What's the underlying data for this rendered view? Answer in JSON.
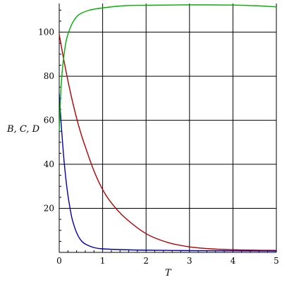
{
  "chart_data": {
    "type": "line",
    "title": "",
    "xlabel": "T",
    "ylabel": "B, C, D",
    "xlim": [
      0,
      5
    ],
    "ylim": [
      0,
      113
    ],
    "x_ticks": [
      0,
      1,
      2,
      3,
      4,
      5
    ],
    "y_ticks": [
      20,
      40,
      60,
      80,
      100
    ],
    "grid": true,
    "legend": "none",
    "series": [
      {
        "color": "#b00000",
        "x": [
          0,
          0.1,
          0.2,
          0.3,
          0.4,
          0.5,
          0.6,
          0.8,
          1.0,
          1.2,
          1.5,
          2.0,
          2.5,
          3.0,
          3.5,
          4.0,
          4.5,
          5.0
        ],
        "y": [
          99,
          88,
          78,
          69,
          61,
          54,
          48,
          37,
          28.5,
          22.5,
          16,
          8.5,
          4.5,
          2.5,
          1.6,
          1.2,
          1.0,
          0.9
        ]
      },
      {
        "color": "#0000b0",
        "x": [
          0,
          0.05,
          0.1,
          0.15,
          0.2,
          0.25,
          0.3,
          0.4,
          0.5,
          0.6,
          0.8,
          1.0,
          1.5,
          2.0,
          3.0,
          4.0,
          5.0
        ],
        "y": [
          72,
          57,
          44,
          34,
          26,
          20,
          15,
          9,
          5.5,
          3.8,
          2.2,
          1.6,
          1.2,
          1.0,
          0.8,
          0.7,
          0.6
        ]
      },
      {
        "color": "#00b000",
        "x": [
          0,
          0.03,
          0.06,
          0.1,
          0.15,
          0.2,
          0.3,
          0.4,
          0.5,
          0.7,
          1.0,
          1.5,
          2.0,
          3.0,
          4.0,
          4.5,
          5.0
        ],
        "y": [
          55,
          70,
          80,
          88,
          95,
          99,
          104,
          107,
          108.5,
          110,
          111,
          112,
          112.2,
          112.4,
          112.3,
          112.0,
          111.5
        ]
      }
    ]
  }
}
